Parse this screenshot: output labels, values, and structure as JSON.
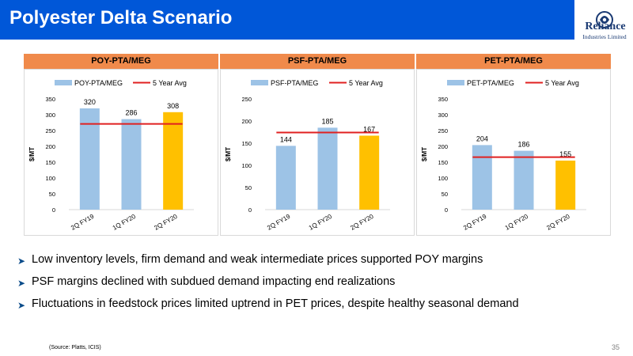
{
  "header": {
    "title": "Polyester Delta Scenario",
    "logo_name": "Reliance",
    "logo_sub": "Industries Limited"
  },
  "chart_data": [
    {
      "type": "bar",
      "title": "POY-PTA/MEG",
      "ylabel": "$/MT",
      "categories": [
        "2Q FY19",
        "1Q FY20",
        "2Q FY20"
      ],
      "series": [
        {
          "name": "POY-PTA/MEG",
          "values": [
            320,
            286,
            308
          ]
        },
        {
          "name": "5 Year Avg",
          "values": [
            271,
            271,
            271
          ]
        }
      ],
      "bar_colors": [
        "#9dc3e6",
        "#9dc3e6",
        "#ffc000"
      ],
      "avg_color": "#e02020",
      "data_labels": [
        "320",
        "286",
        "308"
      ],
      "ylim": [
        0,
        350
      ],
      "yticks": [
        0,
        50,
        100,
        150,
        200,
        250,
        300,
        350
      ],
      "legend": "top",
      "grid": false
    },
    {
      "type": "bar",
      "title": "PSF-PTA/MEG",
      "ylabel": "$/MT",
      "categories": [
        "2Q FY19",
        "1Q FY20",
        "2Q FY20"
      ],
      "series": [
        {
          "name": "PSF-PTA/MEG",
          "values": [
            144,
            185,
            167
          ]
        },
        {
          "name": "5 Year Avg",
          "values": [
            174,
            174,
            174
          ]
        }
      ],
      "bar_colors": [
        "#9dc3e6",
        "#9dc3e6",
        "#ffc000"
      ],
      "avg_color": "#e02020",
      "data_labels": [
        "144",
        "185",
        "167"
      ],
      "ylim": [
        0,
        250
      ],
      "yticks": [
        0,
        50,
        100,
        150,
        200,
        250
      ],
      "legend": "top",
      "grid": false
    },
    {
      "type": "bar",
      "title": "PET-PTA/MEG",
      "ylabel": "$/MT",
      "categories": [
        "2Q FY19",
        "1Q FY20",
        "2Q FY20"
      ],
      "series": [
        {
          "name": "PET-PTA/MEG",
          "values": [
            204,
            186,
            155
          ]
        },
        {
          "name": "5 Year Avg",
          "values": [
            166,
            166,
            166
          ]
        }
      ],
      "bar_colors": [
        "#9dc3e6",
        "#9dc3e6",
        "#ffc000"
      ],
      "avg_color": "#e02020",
      "data_labels": [
        "204",
        "186",
        "155"
      ],
      "ylim": [
        0,
        350
      ],
      "yticks": [
        0,
        50,
        100,
        150,
        200,
        250,
        300,
        350
      ],
      "legend": "top",
      "grid": false
    }
  ],
  "bullets": [
    "Low inventory levels, firm demand and weak intermediate prices supported POY margins",
    "PSF margins declined with subdued demand impacting end realizations",
    "Fluctuations in feedstock prices limited uptrend in PET prices, despite healthy seasonal demand"
  ],
  "footer": {
    "source": "(Source: Platts, ICIS)",
    "page_number": "35"
  },
  "colors": {
    "header_bg": "#0057d8",
    "panel_header": "#f08a4b",
    "bullet_arrow": "#0b4c8a"
  },
  "icons": {
    "bullet": "arrow-right-icon",
    "logo": "reliance-logo-icon"
  }
}
